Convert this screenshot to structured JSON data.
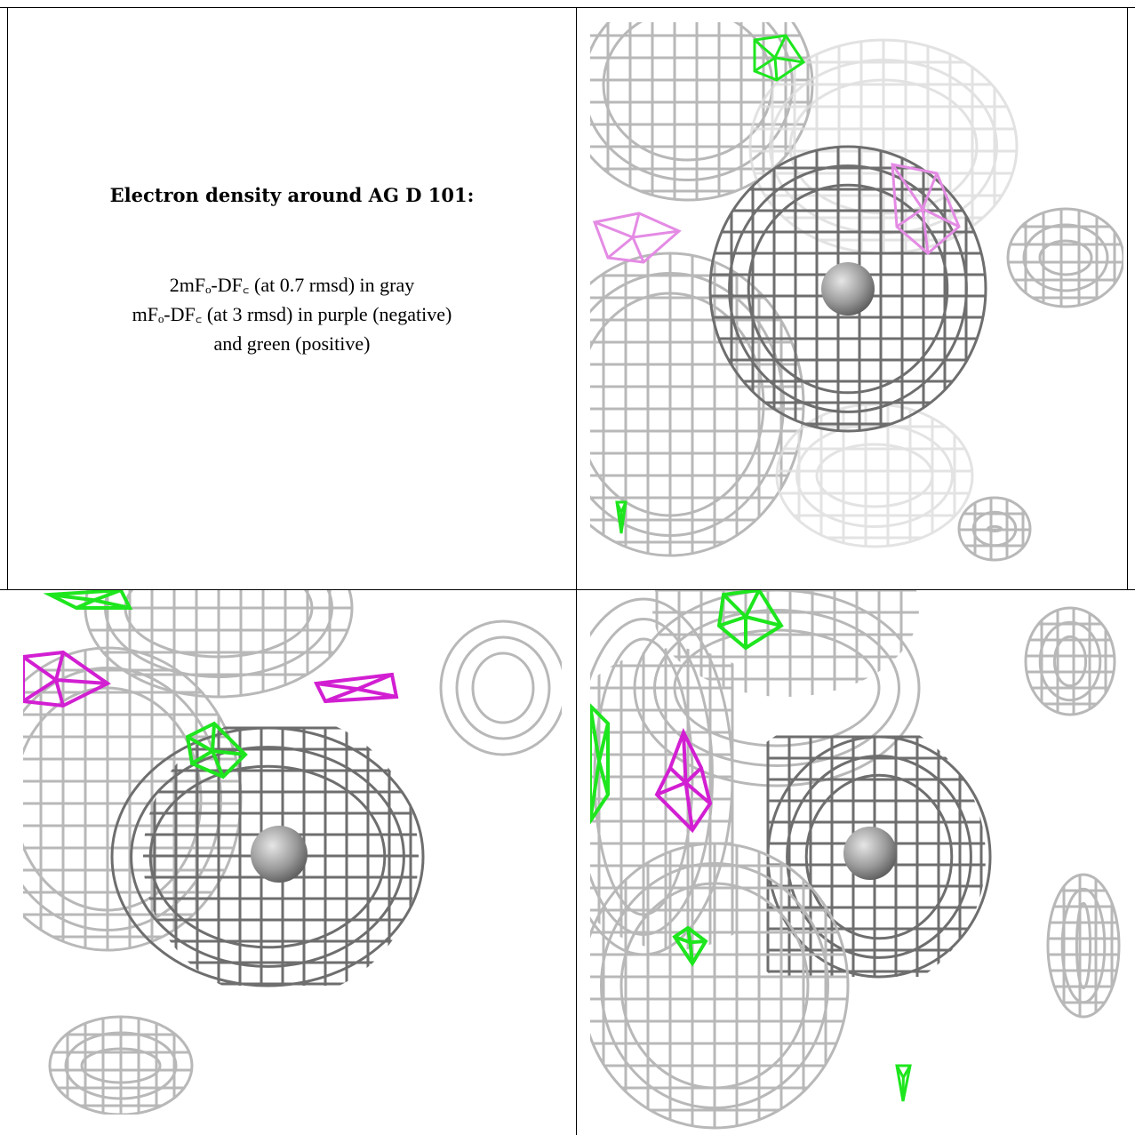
{
  "caption": {
    "title": "Electron density around AG D 101:",
    "legend_lines": [
      "2mFₒ-DF꜀ (at 0.7 rmsd) in gray",
      "mFₒ-DF꜀ (at 3 rmsd) in purple (negative)",
      "and green (positive)"
    ]
  },
  "colors": {
    "mesh_gray": "#b8b8b8",
    "mesh_dark": "#6e6e6e",
    "negative": "#d21fd2",
    "positive": "#1ee61e",
    "atom": "#9a9a9a"
  },
  "panels": [
    {
      "name": "density-view-1",
      "atom_label": "AG D 101"
    },
    {
      "name": "density-view-2",
      "atom_label": "AG D 101"
    },
    {
      "name": "density-view-3",
      "atom_label": "AG D 101"
    }
  ]
}
